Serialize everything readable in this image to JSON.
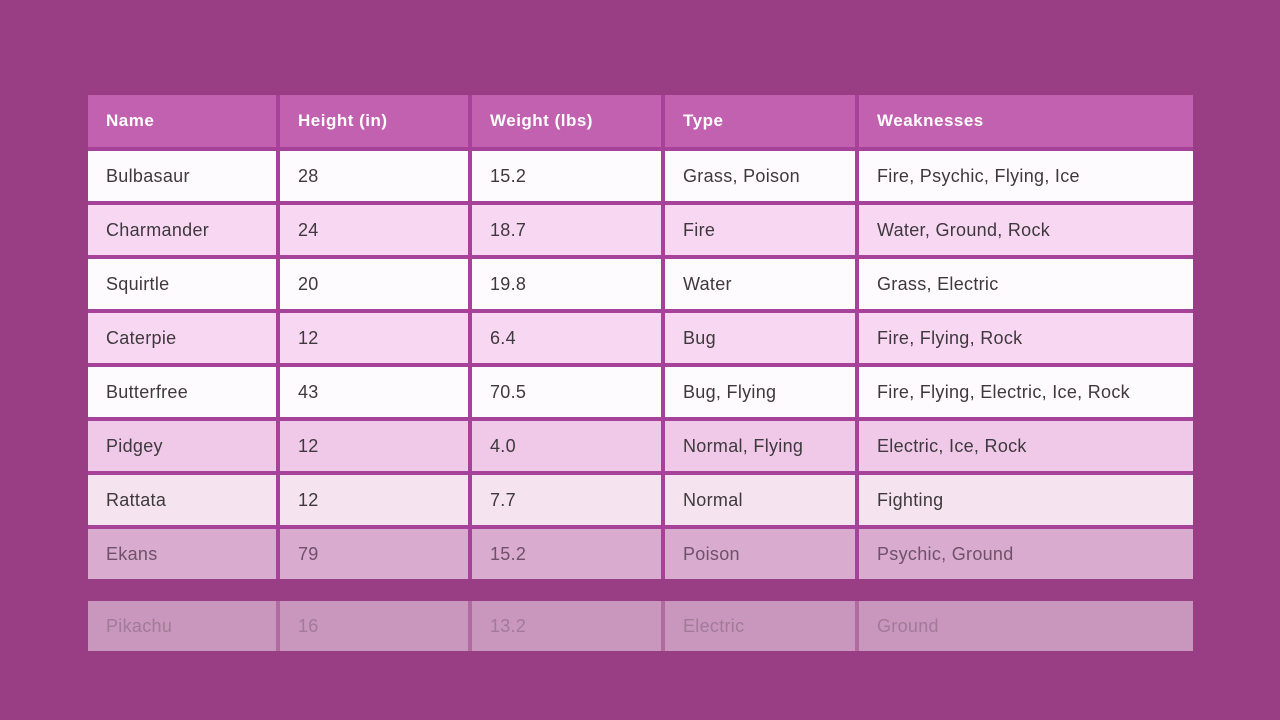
{
  "page": {
    "background_color": "#993e85"
  },
  "chart_data": {
    "type": "table",
    "title": "Pokemon stats table",
    "columns": [
      "Name",
      "Height (in)",
      "Weight (lbs)",
      "Type",
      "Weaknesses"
    ],
    "rows": [
      [
        "Bulbasaur",
        "28",
        "15.2",
        "Grass, Poison",
        "Fire, Psychic, Flying, Ice"
      ],
      [
        "Charmander",
        "24",
        "18.7",
        "Fire",
        "Water, Ground, Rock"
      ],
      [
        "Squirtle",
        "20",
        "19.8",
        "Water",
        "Grass, Electric"
      ],
      [
        "Caterpie",
        "12",
        "6.4",
        "Bug",
        "Fire, Flying, Rock"
      ],
      [
        "Butterfree",
        "43",
        "70.5",
        "Bug, Flying",
        "Fire, Flying, Electric, Ice, Rock"
      ],
      [
        "Pidgey",
        "12",
        "4.0",
        "Normal, Flying",
        "Electric, Ice, Rock"
      ],
      [
        "Rattata",
        "12",
        "7.7",
        "Normal",
        "Fighting"
      ],
      [
        "Ekans",
        "79",
        "15.2",
        "Poison",
        "Psychic, Ground"
      ],
      [
        "Pikachu",
        "16",
        "13.2",
        "Electric",
        "Ground"
      ]
    ],
    "layout_hints": {
      "header_position": "top",
      "detached_last_row": "Pikachu",
      "faded_rows": [
        "Rattata",
        "Ekans",
        "Pikachu"
      ]
    }
  },
  "colors": {
    "header_bg": "#c161b0",
    "header_text": "#ffffff",
    "border": "#a6429a",
    "row_white": "#fdfbfd",
    "row_pink": "#f8d7f2",
    "row_pink_dark": "#f0c9e9",
    "row_fade_light": "#f5e3f0",
    "row_fade_mid": "#d9abce",
    "row_fade_strong": "#c996bd",
    "body_text": "#3e393d",
    "faded_text_mid": "#6f5169",
    "faded_text_strong": "#a17b97"
  }
}
